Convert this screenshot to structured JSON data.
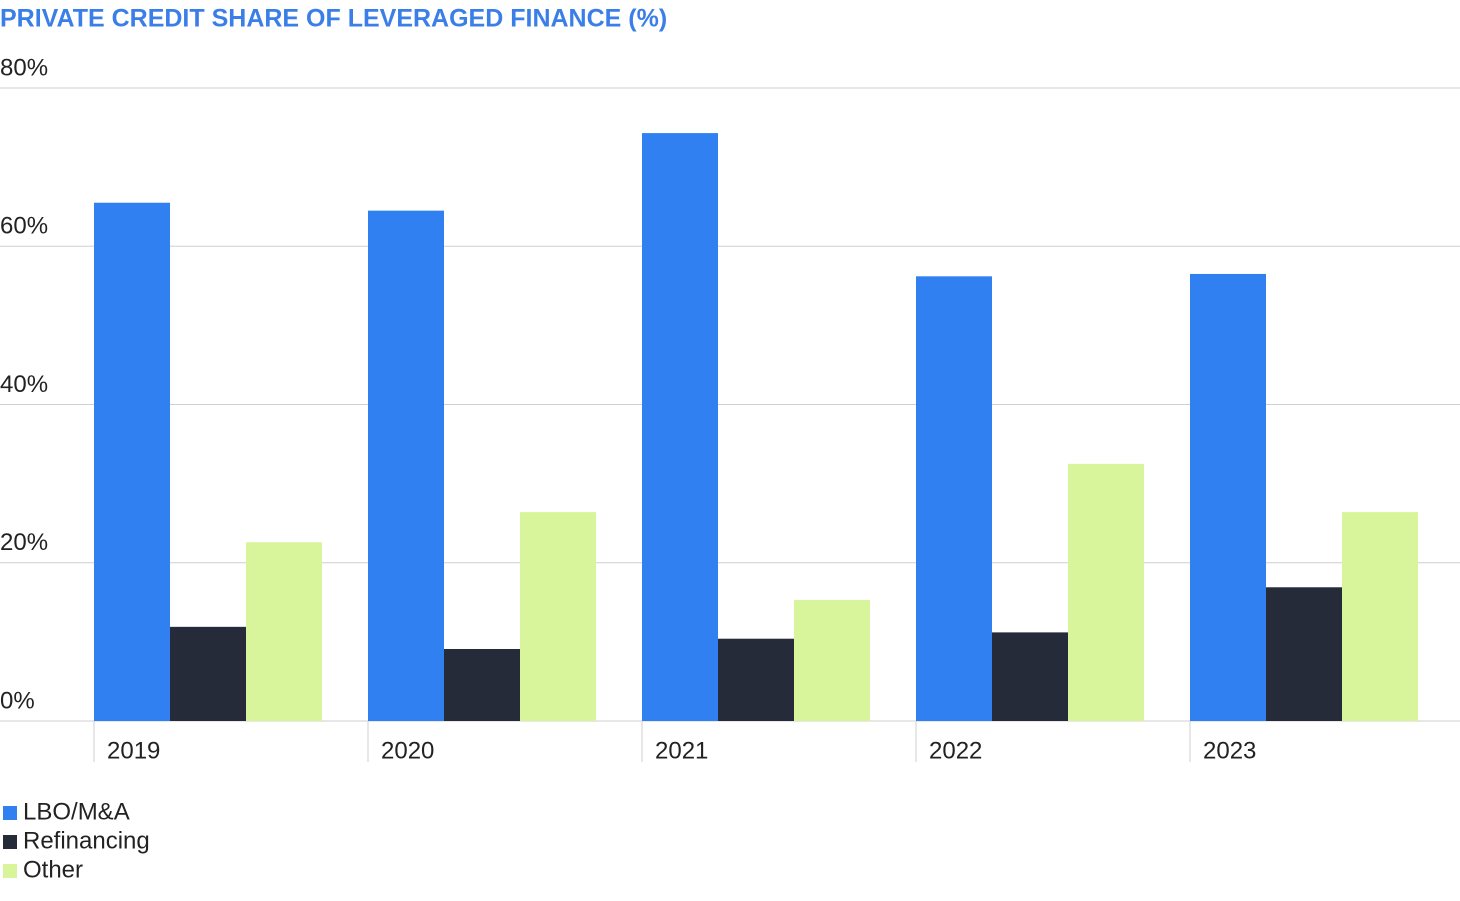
{
  "chart_data": {
    "type": "bar",
    "title": "PRIVATE CREDIT SHARE OF LEVERAGED FINANCE (%)",
    "categories": [
      "2019",
      "2020",
      "2021",
      "2022",
      "2023"
    ],
    "series": [
      {
        "name": "LBO/M&A",
        "color": "#3080f2",
        "values": [
          65.5,
          64.5,
          74.3,
          56.2,
          56.5
        ]
      },
      {
        "name": "Refinancing",
        "color": "#262b3a",
        "values": [
          11.9,
          9.1,
          10.4,
          11.2,
          16.9
        ]
      },
      {
        "name": "Other",
        "color": "#d9f59b",
        "values": [
          22.6,
          26.4,
          15.3,
          32.5,
          26.4
        ]
      }
    ],
    "ylim": [
      0,
      80
    ],
    "yticks": [
      {
        "value": 0,
        "label": "0%"
      },
      {
        "value": 20,
        "label": "20%"
      },
      {
        "value": 40,
        "label": "40%"
      },
      {
        "value": 60,
        "label": "60%"
      },
      {
        "value": 80,
        "label": "80%"
      }
    ],
    "grid": true
  }
}
